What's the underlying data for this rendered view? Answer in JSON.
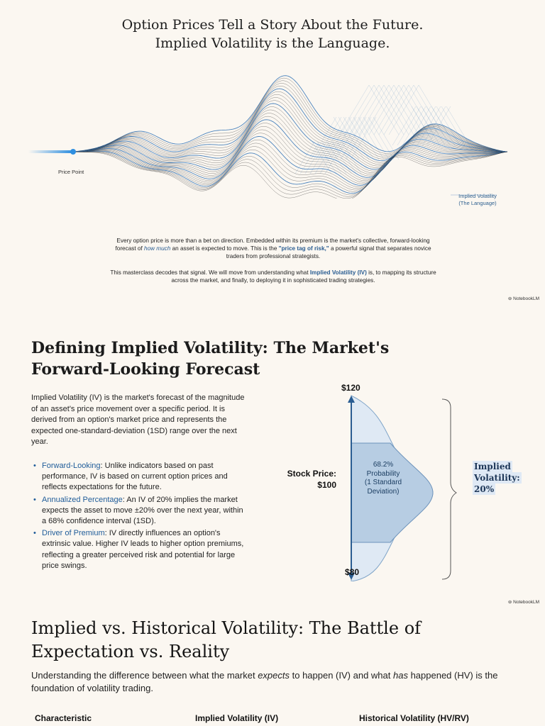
{
  "slide1": {
    "title_line1": "Option Prices Tell a Story About the Future.",
    "title_line2": "Implied Volatility is the Language.",
    "price_point_label": "Price Point",
    "iv_label_line1": "Implied Volatility",
    "iv_label_line2": "(The Language)",
    "para1_a": "Every option price is more than a bet on direction. Embedded within its premium is the market's collective, forward-looking forecast of ",
    "para1_em": "how much",
    "para1_b": " an asset is expected to move. This is the ",
    "para1_bold": "\"price tag of risk,\"",
    "para1_c": " a powerful signal that separates novice traders from professional strategists.",
    "para2_a": "This masterclass decodes that signal. We will move from understanding what ",
    "para2_bold": "Implied Volatility (IV)",
    "para2_b": " is, to mapping its structure across the market, and finally, to deploying it in sophisticated trading strategies.",
    "brand": "NotebookLM",
    "colors": {
      "accent": "#2a5d92",
      "background": "#fbf7f1"
    }
  },
  "slide2": {
    "title_line1": "Defining Implied Volatility: The Market's",
    "title_line2": "Forward-Looking Forecast",
    "intro": "Implied Volatility (IV) is the market's forecast of the magnitude of an asset's price movement over a specific period. It is derived from an option's market price and represents the expected one-standard-deviation (1SD) range over the next year.",
    "bullets": [
      {
        "term": "Forward-Looking",
        "text": ": Unlike indicators based on past performance, IV is based on current option prices and reflects expectations for the future."
      },
      {
        "term": "Annualized Percentage",
        "text": ": An IV of 20% implies the market expects the asset to move ±20% over the next year, within a 68% confidence interval (1SD)."
      },
      {
        "term": "Driver of Premium",
        "text": ": IV directly influences an option's extrinsic value. Higher IV leads to higher option premiums, reflecting a greater perceived risk and potential for large price swings."
      }
    ],
    "diagram": {
      "upper_price": "$120",
      "lower_price": "$80",
      "stock_price_line1": "Stock Price:",
      "stock_price_line2": "$100",
      "prob_line1": "68.2%",
      "prob_line2": "Probability",
      "prob_line3": "(1 Standard",
      "prob_line4": "Deviation)",
      "iv_line1": "Implied",
      "iv_line2": "Volatility:",
      "iv_line3": "20%"
    },
    "brand": "NotebookLM"
  },
  "slide3": {
    "title_line1": "Implied vs. Historical Volatility: The Battle of",
    "title_line2": "Expectation vs. Reality",
    "sub_a": "Understanding the difference between what the market ",
    "sub_em1": "expects",
    "sub_b": " to happen (IV) and what ",
    "sub_em2": "has",
    "sub_c": " happened (HV) is the foundation of volatility trading.",
    "table_headers": [
      "Characteristic",
      "Implied Volatility (IV)",
      "Historical Volatility (HV/RV)"
    ]
  }
}
